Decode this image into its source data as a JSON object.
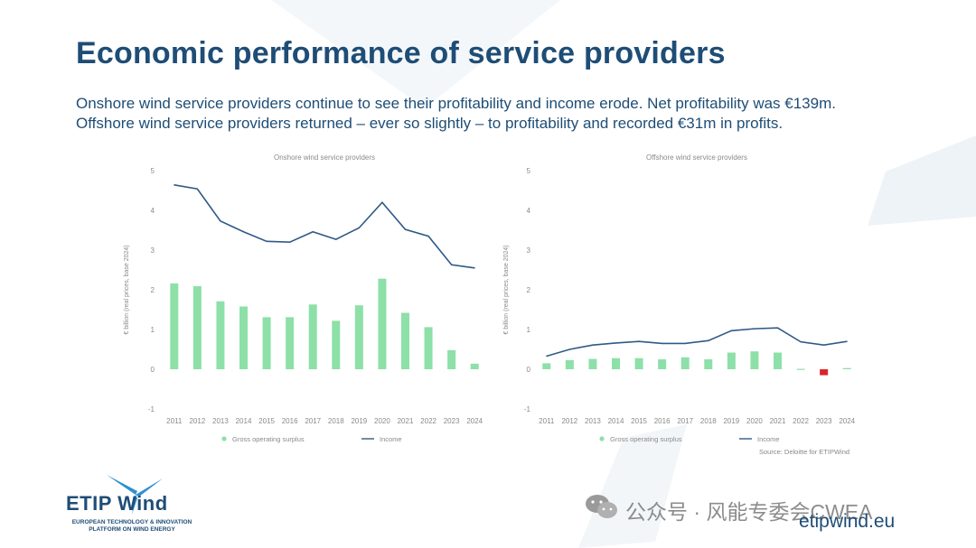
{
  "page": {
    "title": "Economic performance of service providers",
    "subtitle": "Onshore wind service providers continue to see their profitability and income erode. Net profitability was €139m. Offshore wind service providers returned – ever so slightly – to profitability and recorded €31m in profits.",
    "source": "Source: Deloitte for ETIPWind",
    "brand_name": "ETIP Wind",
    "brand_tagline": "EUROPEAN TECHNOLOGY & INNOVATION PLATFORM ON WIND ENERGY",
    "website": "etipwind.eu",
    "watermark": "公众号 · 风能专委会CWEA"
  },
  "colors": {
    "title": "#1e4d76",
    "bar": "#8de0a8",
    "bar_negative": "#d9262c",
    "line": "#2f5a86",
    "axis_text": "#8a8a8a"
  },
  "chart_data": [
    {
      "type": "bar+line",
      "title": "Onshore wind service providers",
      "ylabel": "€ billion (real prices, base 2024)",
      "ylim": [
        -1,
        5
      ],
      "yticks": [
        -1,
        0,
        1,
        2,
        3,
        4,
        5
      ],
      "categories": [
        "2011",
        "2012",
        "2013",
        "2014",
        "2015",
        "2016",
        "2017",
        "2018",
        "2019",
        "2020",
        "2021",
        "2022",
        "2023",
        "2024"
      ],
      "series": [
        {
          "name": "Gross operating surplus",
          "kind": "bar",
          "values": [
            2.16,
            2.09,
            1.71,
            1.58,
            1.31,
            1.31,
            1.63,
            1.22,
            1.61,
            2.28,
            1.42,
            1.06,
            0.48,
            0.14
          ]
        },
        {
          "name": "Income",
          "kind": "line",
          "values": [
            4.64,
            4.54,
            3.73,
            3.46,
            3.22,
            3.2,
            3.46,
            3.27,
            3.56,
            4.2,
            3.52,
            3.35,
            2.63,
            2.55
          ]
        }
      ],
      "legend": [
        "Gross operating surplus",
        "Income"
      ]
    },
    {
      "type": "bar+line",
      "title": "Offshore wind service providers",
      "ylabel": "€ billion (real prices, base 2024)",
      "ylim": [
        -1,
        5
      ],
      "yticks": [
        -1,
        0,
        1,
        2,
        3,
        4,
        5
      ],
      "categories": [
        "2011",
        "2012",
        "2013",
        "2014",
        "2015",
        "2016",
        "2017",
        "2018",
        "2019",
        "2020",
        "2021",
        "2022",
        "2023",
        "2024"
      ],
      "series": [
        {
          "name": "Gross operating surplus",
          "kind": "bar",
          "values": [
            0.15,
            0.23,
            0.26,
            0.28,
            0.28,
            0.25,
            0.3,
            0.25,
            0.42,
            0.45,
            0.42,
            0.01,
            -0.15,
            0.03
          ]
        },
        {
          "name": "Income",
          "kind": "line",
          "values": [
            0.33,
            0.5,
            0.61,
            0.66,
            0.7,
            0.65,
            0.65,
            0.72,
            0.97,
            1.02,
            1.04,
            0.69,
            0.61,
            0.7
          ]
        }
      ],
      "legend": [
        "Gross operating surplus",
        "Income"
      ]
    }
  ]
}
